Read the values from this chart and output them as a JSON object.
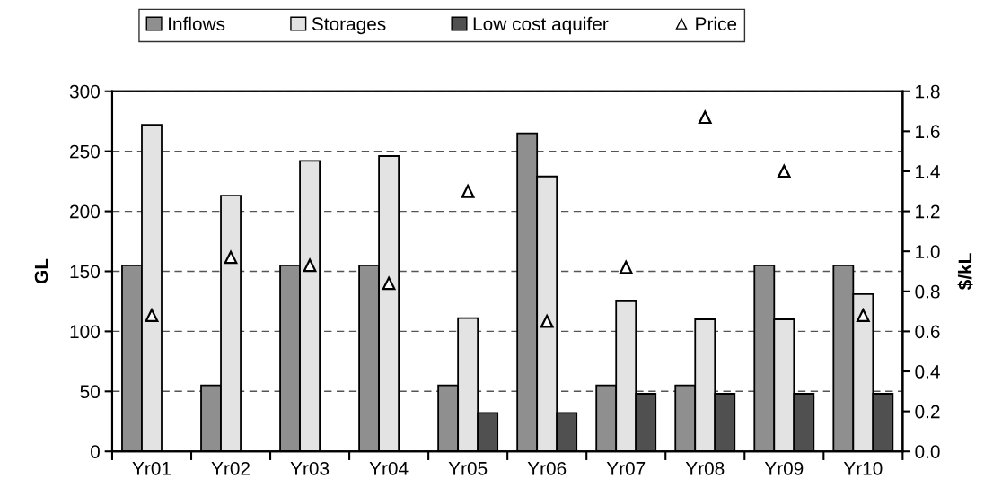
{
  "chart_data": {
    "type": "bar",
    "ylabel": "GL",
    "y2label": "$/kL",
    "categories": [
      "Yr01",
      "Yr02",
      "Yr03",
      "Yr04",
      "Yr05",
      "Yr06",
      "Yr07",
      "Yr08",
      "Yr09",
      "Yr10"
    ],
    "series": [
      {
        "name": "Inflows",
        "color": "#8f8f8f",
        "values": [
          155,
          55,
          155,
          155,
          55,
          265,
          55,
          55,
          155,
          155
        ]
      },
      {
        "name": "Storages",
        "color": "#e3e3e3",
        "values": [
          272,
          213,
          242,
          246,
          111,
          229,
          125,
          110,
          110,
          131
        ]
      },
      {
        "name": "Low cost aquifer",
        "color": "#505050",
        "values": [
          null,
          null,
          null,
          null,
          32,
          32,
          48,
          48,
          48,
          48
        ]
      },
      {
        "name": "Price",
        "type": "scatter",
        "axis": "y2",
        "marker": "triangle",
        "color": "#000000",
        "values": [
          0.68,
          0.97,
          0.93,
          0.84,
          1.3,
          0.65,
          0.92,
          1.67,
          1.4,
          0.68
        ]
      }
    ],
    "ylim": [
      0,
      300
    ],
    "yticks": [
      0,
      50,
      100,
      150,
      200,
      250,
      300
    ],
    "y2lim": [
      0,
      1.8
    ],
    "y2ticks": [
      {
        "value": 0,
        "label": "0.0"
      },
      {
        "value": 0.2,
        "label": "0.2"
      },
      {
        "value": 0.4,
        "label": "0.4"
      },
      {
        "value": 0.6,
        "label": "0.6"
      },
      {
        "value": 0.8,
        "label": "0.8"
      },
      {
        "value": 1.0,
        "label": "1.0"
      },
      {
        "value": 1.2,
        "label": "1.2"
      },
      {
        "value": 1.4,
        "label": "1.4"
      },
      {
        "value": 1.6,
        "label": "1.6"
      },
      {
        "value": 1.8,
        "label": "1.8"
      }
    ],
    "grid": "y",
    "legend": "top"
  }
}
